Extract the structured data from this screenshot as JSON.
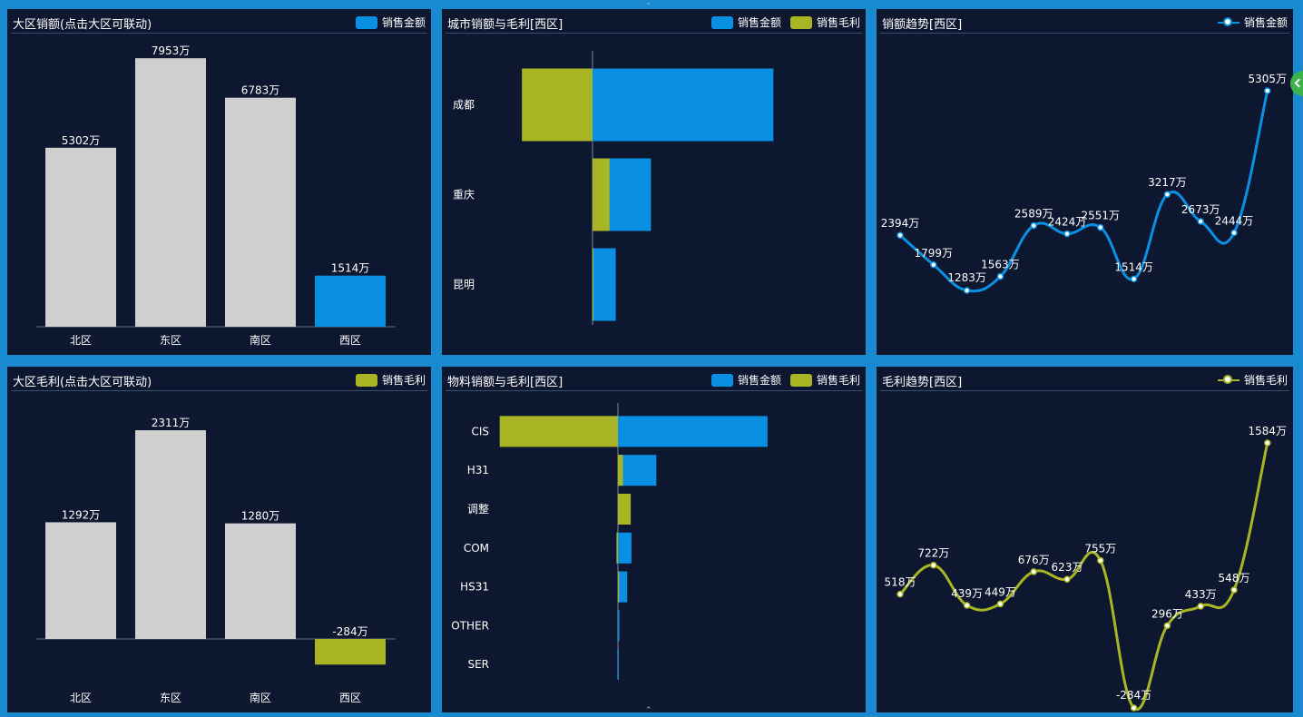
{
  "colors": {
    "blue": "#0990e3",
    "olive": "#a8b524",
    "gray": "#cfcfcf",
    "panel": "#0e1730",
    "bg": "#1a8ad0"
  },
  "panels": {
    "region_sales": {
      "title": "大区销额(点击大区可联动)",
      "legend": [
        "销售金额"
      ]
    },
    "city_sales": {
      "title": "城市销额与毛利[西区]",
      "legend": [
        "销售金额",
        "销售毛利"
      ]
    },
    "sales_trend": {
      "title": "销额趋势[西区]",
      "legend": [
        "销售金额"
      ]
    },
    "region_profit": {
      "title": "大区毛利(点击大区可联动)",
      "legend": [
        "销售毛利"
      ]
    },
    "material": {
      "title": "物料销额与毛利[西区]",
      "legend": [
        "销售金额",
        "销售毛利"
      ]
    },
    "profit_trend": {
      "title": "毛利趋势[西区]",
      "legend": [
        "销售毛利"
      ]
    }
  },
  "chart_data": [
    {
      "id": "region_sales",
      "type": "bar",
      "categories": [
        "北区",
        "东区",
        "南区",
        "西区"
      ],
      "values": [
        5302,
        7953,
        6783,
        1514
      ],
      "labels": [
        "5302万",
        "7953万",
        "6783万",
        "1514万"
      ],
      "highlight": "西区",
      "ylim": [
        0,
        8000
      ]
    },
    {
      "id": "city_sales",
      "type": "bar",
      "orientation": "horizontal",
      "categories": [
        "成都",
        "重庆",
        "昆明"
      ],
      "series": [
        {
          "name": "销售金额",
          "values": [
            1012,
            327,
            130
          ]
        },
        {
          "name": "销售毛利",
          "values": [
            -395,
            95,
            5
          ]
        }
      ]
    },
    {
      "id": "sales_trend",
      "type": "line",
      "series": [
        {
          "name": "销售金额",
          "values": [
            2394,
            1799,
            1283,
            1563,
            2589,
            2424,
            2551,
            1514,
            3217,
            2673,
            2444,
            5305
          ]
        }
      ],
      "labels": [
        "2394万",
        "1799万",
        "1283万",
        "1563万",
        "2589万",
        "2424万",
        "2551万",
        "1514万",
        "3217万",
        "2673万",
        "2444万",
        "5305万"
      ]
    },
    {
      "id": "region_profit",
      "type": "bar",
      "categories": [
        "北区",
        "东区",
        "南区",
        "西区"
      ],
      "values": [
        1292,
        2311,
        1280,
        -284
      ],
      "labels": [
        "1292万",
        "2311万",
        "1280万",
        "-284万"
      ],
      "highlight": "西区"
    },
    {
      "id": "material",
      "type": "bar",
      "orientation": "horizontal",
      "categories": [
        "CIS",
        "H31",
        "调整",
        "COM",
        "HS31",
        "OTHER",
        "SER"
      ],
      "series": [
        {
          "name": "销售金额",
          "values": [
            1050,
            270,
            30,
            95,
            65,
            10,
            3
          ]
        },
        {
          "name": "销售毛利",
          "values": [
            -830,
            35,
            90,
            -10,
            8,
            1,
            0
          ]
        }
      ]
    },
    {
      "id": "profit_trend",
      "type": "line",
      "series": [
        {
          "name": "销售毛利",
          "values": [
            518,
            722,
            439,
            449,
            676,
            623,
            755,
            -284,
            296,
            433,
            548,
            1584
          ]
        }
      ],
      "labels": [
        "518万",
        "722万",
        "439万",
        "449万",
        "676万",
        "623万",
        "755万",
        "-284万",
        "296万",
        "433万",
        "548万",
        "1584万"
      ]
    }
  ]
}
